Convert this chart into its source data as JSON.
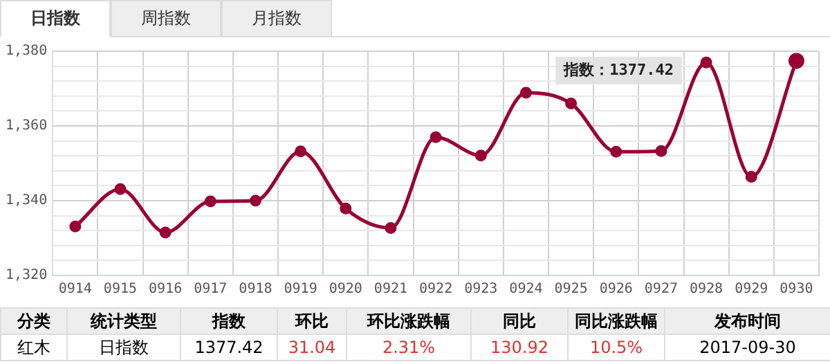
{
  "chart_data": {
    "type": "line",
    "categories": [
      "0914",
      "0915",
      "0916",
      "0917",
      "0918",
      "0919",
      "0920",
      "0921",
      "0922",
      "0923",
      "0924",
      "0925",
      "0926",
      "0927",
      "0928",
      "0929",
      "0930"
    ],
    "series": [
      {
        "color": "#990033",
        "values": [
          1333.1,
          1343.1,
          1331.5,
          1339.8,
          1340,
          1353.2,
          1337.9,
          1332.7,
          1357,
          1352.1,
          1368.9,
          1366,
          1353.1,
          1353.3,
          1377,
          1346.38,
          1377.42
        ]
      }
    ],
    "ylim": [
      1320,
      1380
    ],
    "yticks": [
      {
        "value": 1320,
        "label": "1,320"
      },
      {
        "value": 1324,
        "label": null
      },
      {
        "value": 1328,
        "label": null
      },
      {
        "value": 1332,
        "label": null
      },
      {
        "value": 1336,
        "label": null
      },
      {
        "value": 1340,
        "label": "1,340"
      },
      {
        "value": 1344,
        "label": null
      },
      {
        "value": 1348,
        "label": null
      },
      {
        "value": 1352,
        "label": null
      },
      {
        "value": 1356,
        "label": null
      },
      {
        "value": 1360,
        "label": "1,360"
      },
      {
        "value": 1364,
        "label": null
      },
      {
        "value": 1368,
        "label": null
      },
      {
        "value": 1372,
        "label": null
      },
      {
        "value": 1376,
        "label": null
      },
      {
        "value": 1380,
        "label": "1,380"
      }
    ],
    "grid": true,
    "legend": false,
    "marker": "circle",
    "line_style": "solid",
    "annotations": [
      "日指数",
      "周指数",
      "月指数",
      "分类",
      "统计类型",
      "指数",
      "环比",
      "环比涨跌幅",
      "同比",
      "同比涨跌幅",
      "发布时间",
      "红木",
      "日指数",
      "1377.42",
      "31.04",
      "2.31%",
      "130.92",
      "10.5%",
      "2017-09-30",
      "指数：1377.42"
    ]
  }
}
